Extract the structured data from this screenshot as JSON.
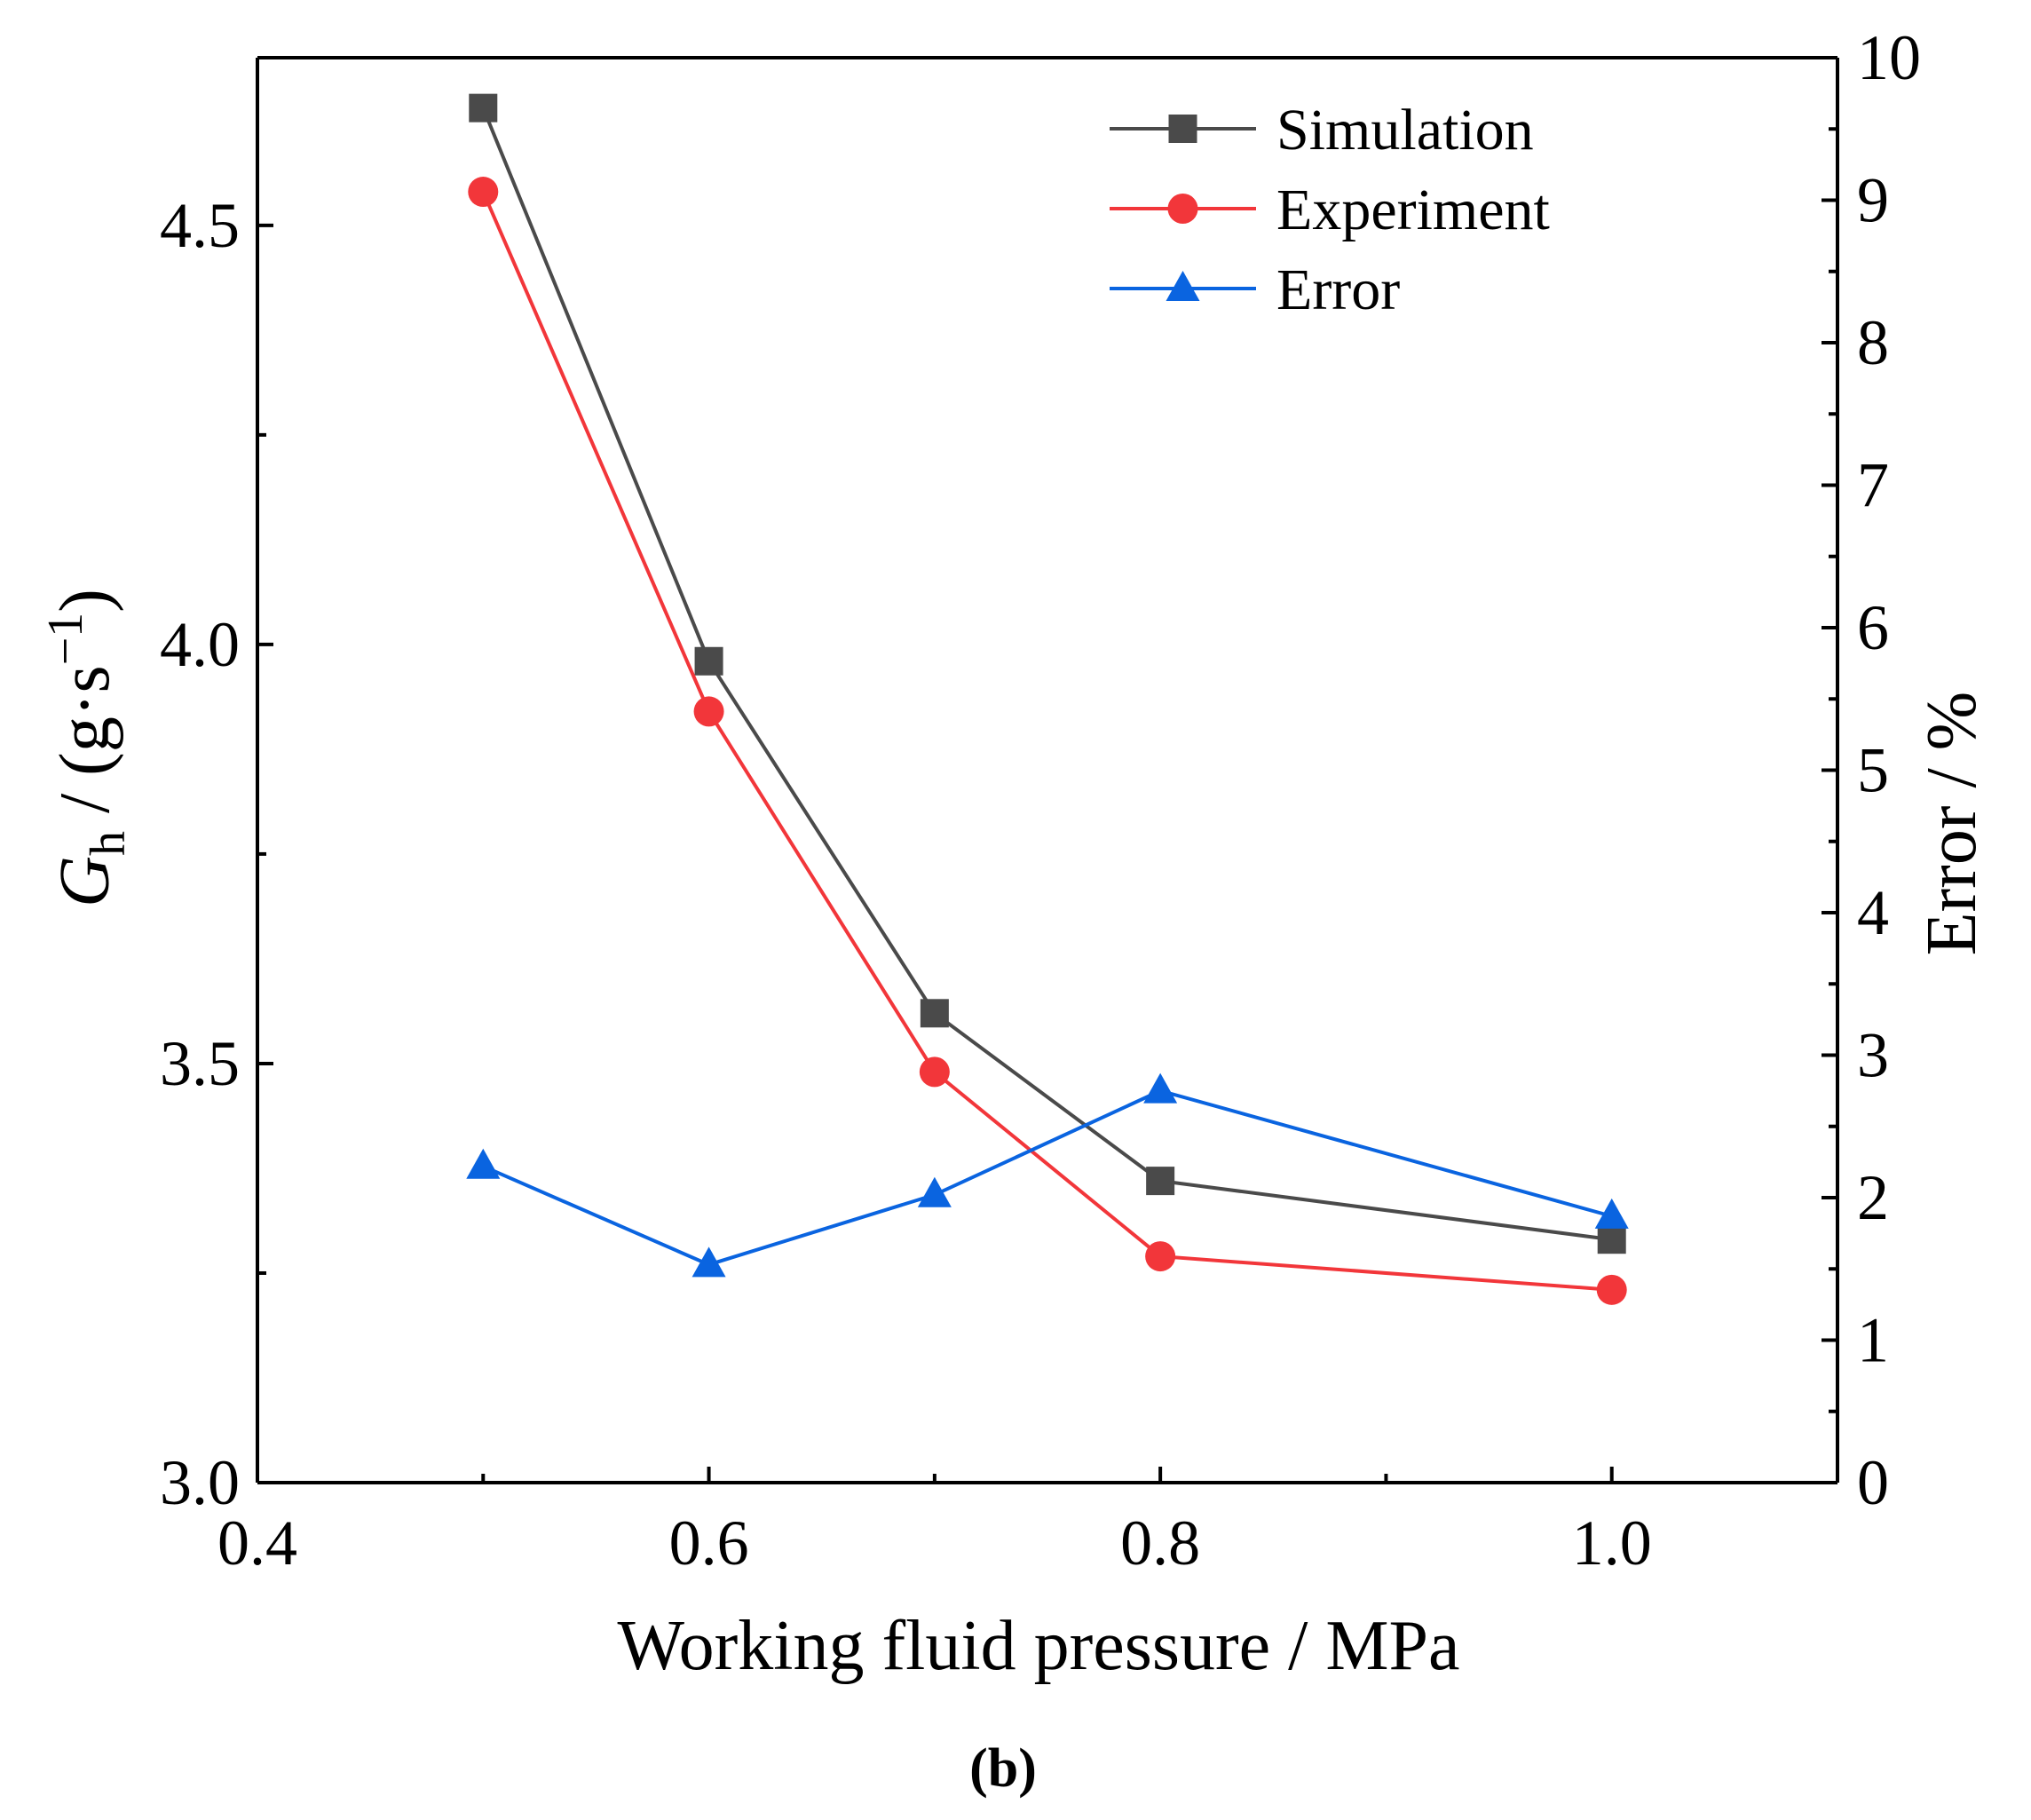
{
  "chart_data": {
    "type": "line",
    "xlabel": "Working fluid pressure / MPa",
    "ylabel_left": {
      "symbol": "G",
      "subscript": "h",
      "units_prefix": " / (g·s",
      "units_exponent": "−1",
      "units_suffix": ")"
    },
    "ylabel_right": "Error / %",
    "panel_label": "(b)",
    "xlim": [
      0.4,
      1.1
    ],
    "ylim_left": [
      3.0,
      4.7
    ],
    "ylim_right": [
      0,
      10
    ],
    "x_ticks": [
      "0.4",
      "0.6",
      "0.8",
      "1.0"
    ],
    "y_left_ticks": [
      "3.0",
      "3.5",
      "4.0",
      "4.5"
    ],
    "y_right_ticks": [
      "0",
      "1",
      "2",
      "3",
      "4",
      "5",
      "6",
      "7",
      "8",
      "9",
      "10"
    ],
    "legend_position": "top-right",
    "series": [
      {
        "name": "Simulation",
        "axis": "left",
        "marker": "square",
        "color": "#4a4a4a",
        "x": [
          0.5,
          0.6,
          0.7,
          0.8,
          1.0
        ],
        "y": [
          4.64,
          3.98,
          3.56,
          3.36,
          3.29
        ]
      },
      {
        "name": "Experiment",
        "axis": "left",
        "marker": "circle",
        "color": "#f2363a",
        "x": [
          0.5,
          0.6,
          0.7,
          0.8,
          1.0
        ],
        "y": [
          4.54,
          3.92,
          3.49,
          3.27,
          3.23
        ]
      },
      {
        "name": "Error",
        "axis": "right",
        "marker": "triangle",
        "color": "#0a64e0",
        "x": [
          0.5,
          0.6,
          0.7,
          0.8,
          1.0
        ],
        "y": [
          2.22,
          1.53,
          2.02,
          2.75,
          1.87
        ]
      }
    ]
  }
}
